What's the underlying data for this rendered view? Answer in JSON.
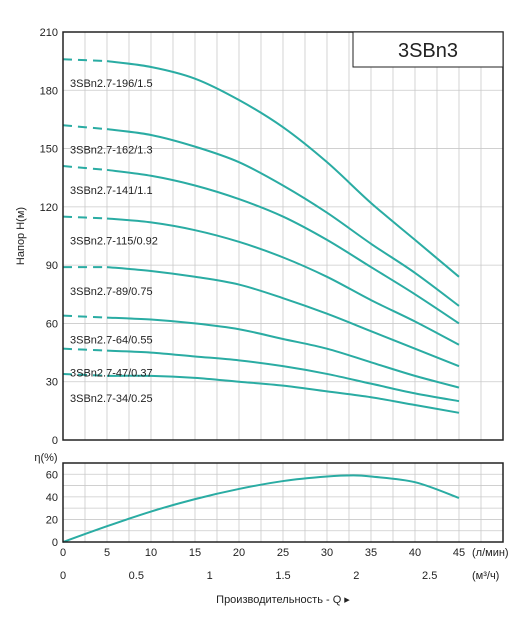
{
  "title": "3SBn3",
  "colors": {
    "curve": "#2aaca3",
    "grid": "#c9c9c9",
    "frame": "#222222"
  },
  "chart_data": [
    {
      "type": "line",
      "title": "3SBn3",
      "ylabel": "Напор H(м)",
      "xlim": [
        0,
        45
      ],
      "ylim": [
        0,
        210
      ],
      "yticks": [
        0,
        30,
        60,
        90,
        120,
        150,
        180,
        210
      ],
      "grid": true,
      "dashed_segment_end_x": 5,
      "series": [
        {
          "name": "3SBn2.7-196/1.5",
          "x": [
            0,
            5,
            10,
            15,
            20,
            25,
            30,
            35,
            40,
            45
          ],
          "y": [
            196,
            195,
            192,
            186,
            175,
            161,
            143,
            122,
            103,
            84
          ]
        },
        {
          "name": "3SBn2.7-162/1.3",
          "x": [
            0,
            5,
            10,
            15,
            20,
            25,
            30,
            35,
            40,
            45
          ],
          "y": [
            162,
            160,
            157,
            151,
            143,
            131,
            117,
            101,
            86,
            69
          ]
        },
        {
          "name": "3SBn2.7-141/1.1",
          "x": [
            0,
            5,
            10,
            15,
            20,
            25,
            30,
            35,
            40,
            45
          ],
          "y": [
            141,
            139,
            136,
            131,
            124,
            115,
            103,
            89,
            75,
            60
          ]
        },
        {
          "name": "3SBn2.7-115/0.92",
          "x": [
            0,
            5,
            10,
            15,
            20,
            25,
            30,
            35,
            40,
            45
          ],
          "y": [
            115,
            114,
            112,
            108,
            102,
            94,
            84,
            72,
            61,
            49
          ]
        },
        {
          "name": "3SBn2.7-89/0.75",
          "x": [
            0,
            5,
            10,
            15,
            20,
            25,
            30,
            35,
            40,
            45
          ],
          "y": [
            89,
            89,
            87,
            84,
            80,
            73,
            65,
            56,
            47,
            38
          ]
        },
        {
          "name": "3SBn2.7-64/0.55",
          "x": [
            0,
            5,
            10,
            15,
            20,
            25,
            30,
            35,
            40,
            45
          ],
          "y": [
            64,
            63,
            62,
            60,
            57,
            52,
            47,
            40,
            33,
            27
          ]
        },
        {
          "name": "3SBn2.7-47/0.37",
          "x": [
            0,
            5,
            10,
            15,
            20,
            25,
            30,
            35,
            40,
            45
          ],
          "y": [
            47,
            46,
            45,
            43,
            41,
            38,
            34,
            29,
            24,
            20
          ]
        },
        {
          "name": "3SBn2.7-34/0.25",
          "x": [
            0,
            5,
            10,
            15,
            20,
            25,
            30,
            35,
            40,
            45
          ],
          "y": [
            34,
            33,
            33,
            32,
            30,
            28,
            25,
            22,
            18,
            14
          ]
        }
      ]
    },
    {
      "type": "line",
      "ylabel": "η(%)",
      "xlim": [
        0,
        45
      ],
      "ylim": [
        0,
        70
      ],
      "yticks": [
        0,
        20,
        40,
        60
      ],
      "xticks": [
        0,
        5,
        10,
        15,
        20,
        25,
        30,
        35,
        40,
        45
      ],
      "xunit": "(л/мин)",
      "x2ticks": [
        "0",
        "0.5",
        "1",
        "1.5",
        "2",
        "2.5"
      ],
      "x2unit": "(м³/ч)",
      "xlabel": "Производительность - Q ▸",
      "grid": true,
      "series": [
        {
          "x": [
            0,
            5,
            10,
            15,
            20,
            25,
            30,
            33,
            35,
            40,
            45
          ],
          "y": [
            0,
            14,
            27,
            38,
            47,
            54,
            58,
            59,
            58,
            53,
            39
          ]
        }
      ]
    }
  ]
}
